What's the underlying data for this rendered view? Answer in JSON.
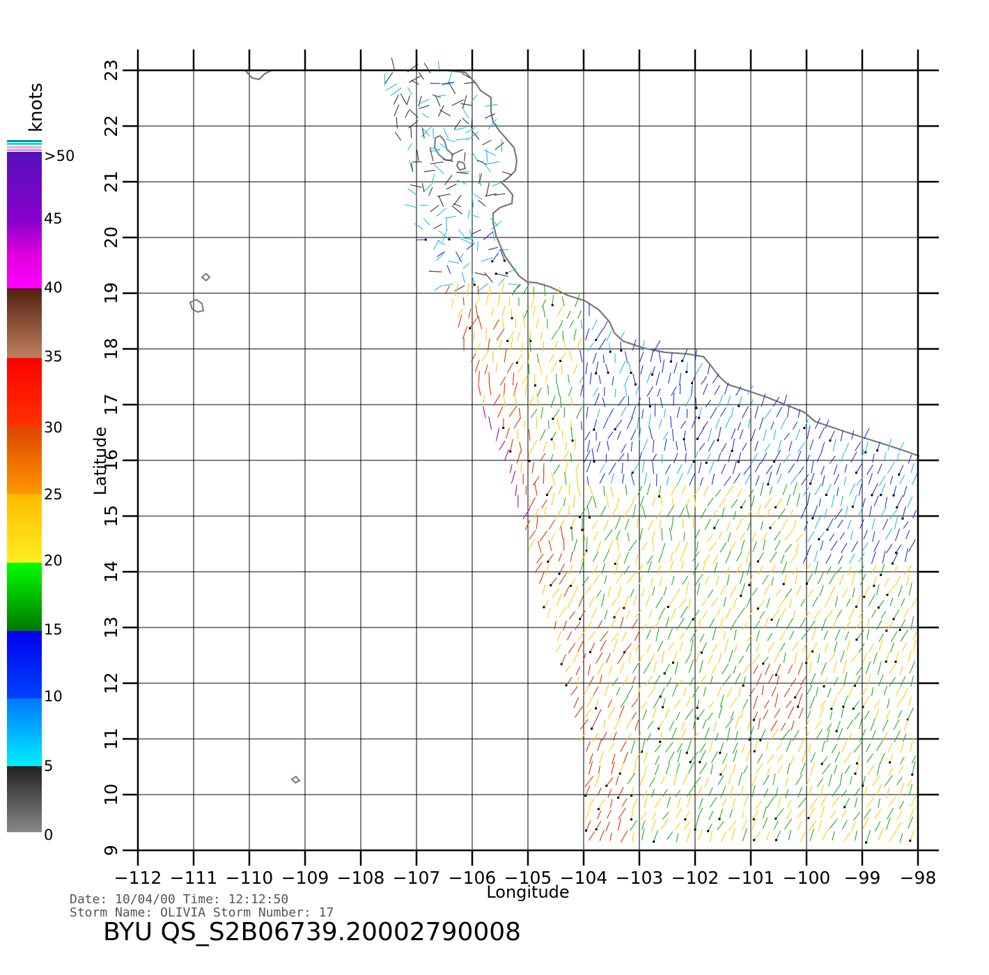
{
  "map": {
    "xlabel": "Longitude",
    "ylabel": "Latitude",
    "lon_ticks": [
      -112,
      -111,
      -110,
      -109,
      -108,
      -107,
      -106,
      -105,
      -104,
      -103,
      -102,
      -101,
      -100,
      -99,
      -98
    ],
    "lon_tick_labels": [
      "−112",
      "−111",
      "−110",
      "−109",
      "−108",
      "−107",
      "−106",
      "−105",
      "−104",
      "−103",
      "−102",
      "−101",
      "−100",
      "−99",
      "−98"
    ],
    "lat_ticks": [
      9,
      10,
      11,
      12,
      13,
      14,
      15,
      16,
      17,
      18,
      19,
      20,
      21,
      22,
      23
    ],
    "lat_tick_labels": [
      "9",
      "10",
      "11",
      "12",
      "13",
      "14",
      "15",
      "16",
      "17",
      "18",
      "19",
      "20",
      "21",
      "22",
      "23"
    ],
    "lon_range": [
      -112,
      -98
    ],
    "lat_range": [
      9,
      23
    ],
    "grid": true
  },
  "colorbar": {
    "unit": "knots",
    "labels": [
      "0",
      "5",
      "10",
      "15",
      "20",
      "25",
      "30",
      "35",
      "40",
      "45",
      ">50"
    ],
    "colors": {
      "0-5": [
        "#888888",
        "#222222"
      ],
      "5-10": [
        "#00eeff",
        "#0077ff"
      ],
      "10-15": [
        "#0044ff",
        "#0000ee"
      ],
      "15-20": [
        "#007700",
        "#00ff00"
      ],
      "20-25": [
        "#ffee22",
        "#ffbb00"
      ],
      "25-30": [
        "#ff9900",
        "#dd4400"
      ],
      "30-35": [
        "#ff3300",
        "#ff0000"
      ],
      "35-40": [
        "#c08060",
        "#502010"
      ],
      "40-45": [
        "#ff00ff",
        "#cc00cc"
      ],
      "45-50": [
        "#aa00cc",
        "#6600bb"
      ]
    }
  },
  "meta": {
    "line1": "Date: 10/04/00   Time: 12:12:50",
    "line2": "Storm Name: OLIVIA   Storm Number: 17",
    "title": "BYU QS_S2B06739.20002790008"
  },
  "coastline_color": "#777777",
  "wind_colors": {
    "calm": "#333333",
    "light": "#22bbee",
    "moderate": "#2233dd",
    "fresh": "#22aa22",
    "strong": "#ffcc00",
    "gale": "#dd3300",
    "storm": "#aa00aa"
  }
}
